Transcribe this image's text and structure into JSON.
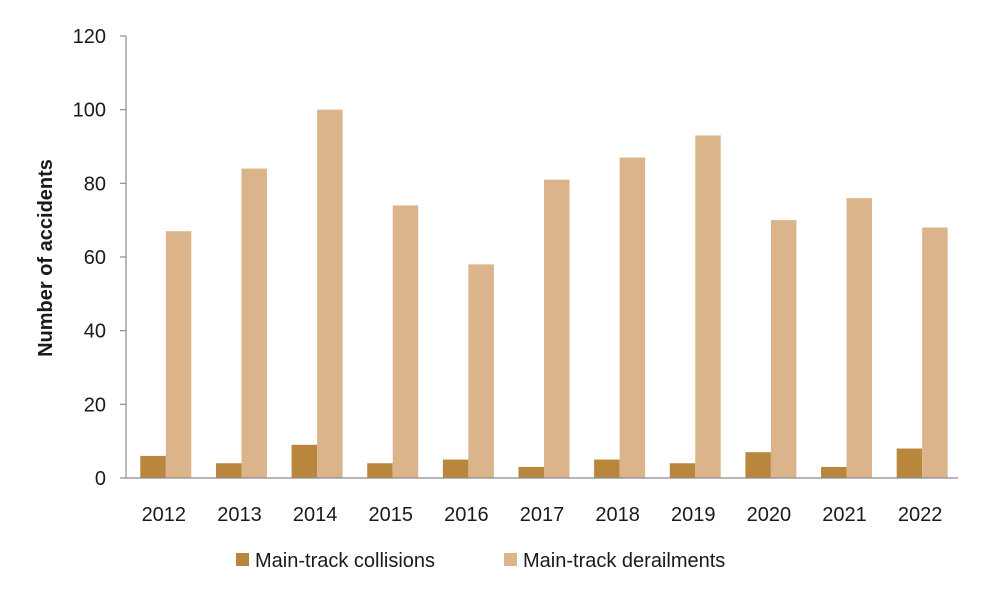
{
  "chart_data": {
    "type": "bar",
    "ylabel": "Number of accidents",
    "xlabel": "",
    "ylim": [
      0,
      120
    ],
    "yticks": [
      0,
      20,
      40,
      60,
      80,
      100,
      120
    ],
    "categories": [
      "2012",
      "2013",
      "2014",
      "2015",
      "2016",
      "2017",
      "2018",
      "2019",
      "2020",
      "2021",
      "2022"
    ],
    "series": [
      {
        "name": "Main-track collisions",
        "color": "#b8863c",
        "values": [
          6,
          4,
          9,
          4,
          5,
          3,
          5,
          4,
          7,
          3,
          8
        ]
      },
      {
        "name": "Main-track derailments",
        "color": "#dcb48c",
        "values": [
          67,
          84,
          100,
          74,
          58,
          81,
          87,
          93,
          70,
          76,
          68
        ]
      }
    ],
    "grid": false,
    "legend": "bottom"
  }
}
